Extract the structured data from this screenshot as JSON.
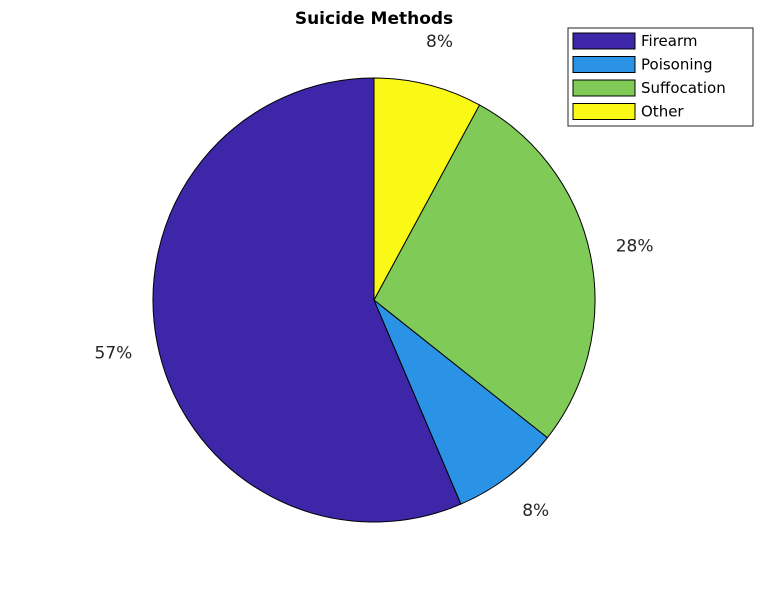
{
  "chart_data": {
    "type": "pie",
    "title": "Suicide Methods",
    "categories": [
      "Firearm",
      "Poisoning",
      "Suffocation",
      "Other"
    ],
    "values": [
      57,
      8,
      28,
      8
    ],
    "labels": [
      "57%",
      "8%",
      "28%",
      "8%"
    ],
    "colors": [
      "#3d26a8",
      "#2b93e6",
      "#80cb58",
      "#f9f915"
    ],
    "legend": {
      "placement": "top-right",
      "entries": [
        "Firearm",
        "Poisoning",
        "Suffocation",
        "Other"
      ]
    }
  }
}
